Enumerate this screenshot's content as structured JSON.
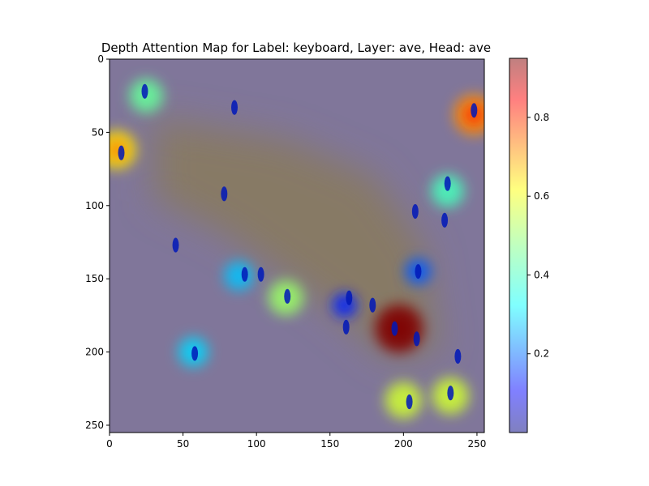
{
  "chart_data": {
    "type": "heatmap",
    "title": "Depth Attention Map for Label: keyboard, Layer: ave, Head: ave",
    "xlabel": "",
    "ylabel": "",
    "xlim": [
      0,
      255
    ],
    "ylim": [
      255,
      0
    ],
    "x_ticks": [
      0,
      50,
      100,
      150,
      200,
      250
    ],
    "y_ticks": [
      0,
      50,
      100,
      150,
      200,
      250
    ],
    "colorbar": {
      "colormap": "jet",
      "alpha": 0.5,
      "range": [
        0.0,
        0.95
      ],
      "ticks": [
        0.2,
        0.4,
        0.6,
        0.8
      ]
    },
    "background_value": 0.02,
    "diffuse_region_value": 0.08,
    "hotspots": [
      {
        "x": 5,
        "y": 62,
        "value": 0.62
      },
      {
        "x": 25,
        "y": 25,
        "value": 0.45
      },
      {
        "x": 248,
        "y": 38,
        "value": 0.7
      },
      {
        "x": 230,
        "y": 90,
        "value": 0.42
      },
      {
        "x": 120,
        "y": 163,
        "value": 0.5
      },
      {
        "x": 88,
        "y": 148,
        "value": 0.3
      },
      {
        "x": 57,
        "y": 200,
        "value": 0.32
      },
      {
        "x": 197,
        "y": 184,
        "value": 0.95
      },
      {
        "x": 200,
        "y": 233,
        "value": 0.55
      },
      {
        "x": 232,
        "y": 230,
        "value": 0.55
      },
      {
        "x": 210,
        "y": 145,
        "value": 0.2
      },
      {
        "x": 160,
        "y": 168,
        "value": 0.15
      }
    ],
    "objects": [
      {
        "x": 24,
        "y": 22,
        "value": 0.0
      },
      {
        "x": 8,
        "y": 64,
        "value": 0.0
      },
      {
        "x": 85,
        "y": 33,
        "value": 0.0
      },
      {
        "x": 78,
        "y": 92,
        "value": 0.0
      },
      {
        "x": 45,
        "y": 127,
        "value": 0.0
      },
      {
        "x": 103,
        "y": 147,
        "value": 0.0
      },
      {
        "x": 92,
        "y": 147,
        "value": 0.0
      },
      {
        "x": 121,
        "y": 162,
        "value": 0.0
      },
      {
        "x": 163,
        "y": 163,
        "value": 0.0
      },
      {
        "x": 179,
        "y": 168,
        "value": 0.0
      },
      {
        "x": 161,
        "y": 183,
        "value": 0.0
      },
      {
        "x": 194,
        "y": 184,
        "value": 0.0
      },
      {
        "x": 209,
        "y": 191,
        "value": 0.0
      },
      {
        "x": 210,
        "y": 145,
        "value": 0.0
      },
      {
        "x": 208,
        "y": 104,
        "value": 0.0
      },
      {
        "x": 228,
        "y": 110,
        "value": 0.0
      },
      {
        "x": 237,
        "y": 203,
        "value": 0.0
      },
      {
        "x": 232,
        "y": 228,
        "value": 0.0
      },
      {
        "x": 204,
        "y": 234,
        "value": 0.0
      },
      {
        "x": 58,
        "y": 201,
        "value": 0.0
      },
      {
        "x": 248,
        "y": 35,
        "value": 0.0
      },
      {
        "x": 230,
        "y": 85,
        "value": 0.0
      }
    ]
  }
}
